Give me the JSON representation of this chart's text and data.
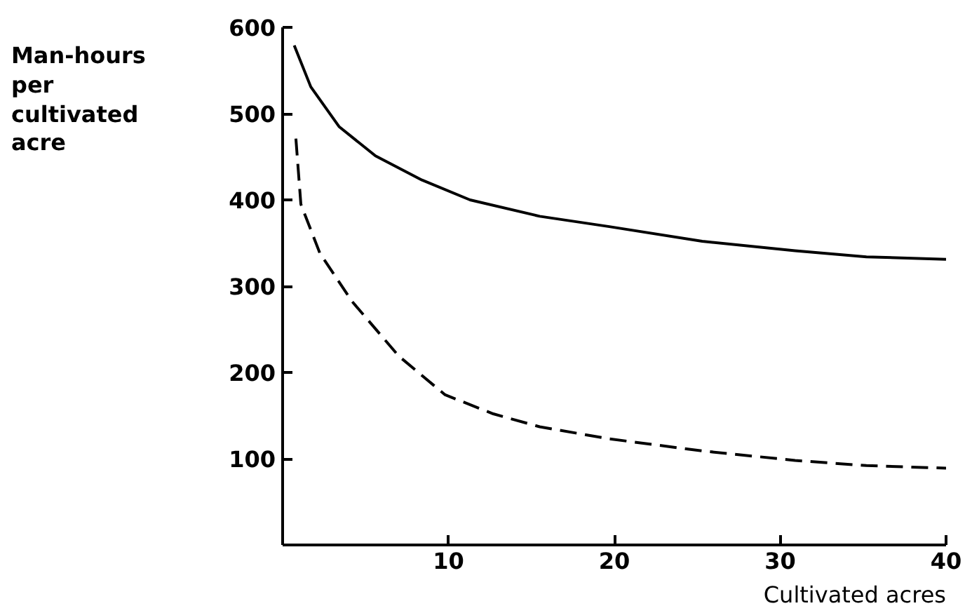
{
  "chart_data": {
    "type": "line",
    "xlabel": "Cultivated acres",
    "ylabel": "Man-hours\nper\ncultivated\nacre",
    "xlim": [
      0,
      40
    ],
    "ylim": [
      0,
      600
    ],
    "xticks": [
      10,
      20,
      30,
      40
    ],
    "yticks": [
      100,
      200,
      300,
      400,
      500,
      600
    ],
    "grid": false,
    "marker": "none",
    "series": [
      {
        "color": "#000000",
        "line_style": "solid",
        "x": [
          0.7,
          1.7,
          3.4,
          5.6,
          8.4,
          11.3,
          15.5,
          19.7,
          25.3,
          30.9,
          35.2,
          40
        ],
        "values": [
          579,
          531,
          485,
          451,
          423,
          400,
          381,
          369,
          352,
          341,
          334,
          331
        ]
      },
      {
        "color": "#000000",
        "line_style": "dashed",
        "x": [
          0.8,
          1.1,
          2.25,
          4.2,
          7.0,
          9.8,
          12.7,
          15.5,
          19.7,
          25.3,
          30.9,
          35.2,
          40
        ],
        "values": [
          471,
          395,
          338,
          282,
          219,
          174,
          152,
          137,
          123,
          109,
          98,
          92,
          89
        ]
      }
    ]
  }
}
